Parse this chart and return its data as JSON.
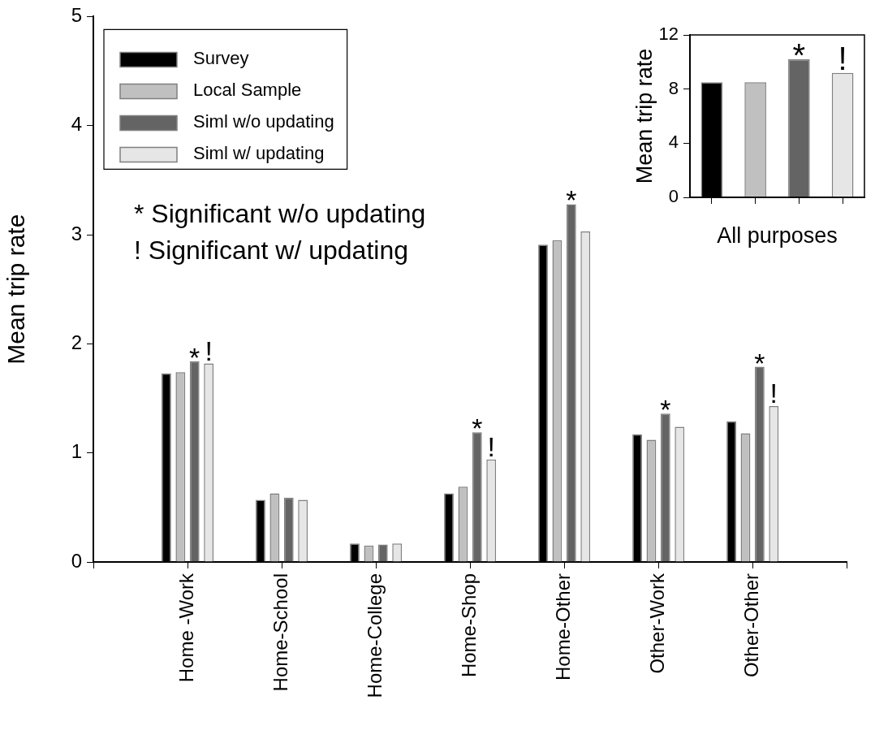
{
  "chart_data": [
    {
      "type": "bar",
      "ylabel": "Mean trip rate",
      "categories": [
        "Home -Work",
        "Home-School",
        "Home-College",
        "Home-Shop",
        "Home-Other",
        "Other-Work",
        "Other-Other"
      ],
      "series": [
        {
          "name": "Survey",
          "color": "#000000",
          "values": [
            1.73,
            0.57,
            0.17,
            0.63,
            2.91,
            1.17,
            1.29
          ]
        },
        {
          "name": "Local Sample",
          "color": "#c0c0c0",
          "values": [
            1.74,
            0.63,
            0.15,
            0.69,
            2.95,
            1.12,
            1.18
          ]
        },
        {
          "name": "Siml w/o updating",
          "color": "#646464",
          "values": [
            1.84,
            0.59,
            0.16,
            1.19,
            3.28,
            1.36,
            1.79
          ]
        },
        {
          "name": "Siml w/ updating",
          "color": "#e6e6e6",
          "values": [
            1.82,
            0.57,
            0.17,
            0.94,
            3.03,
            1.24,
            1.43
          ]
        }
      ],
      "ylim": [
        0,
        5
      ],
      "yticks": [
        0,
        1,
        2,
        3,
        4,
        5
      ],
      "grid": false,
      "legend": "top left",
      "annotations": [
        {
          "text": "*",
          "x": "Home -Work",
          "y": 1.84
        },
        {
          "text": "!",
          "x": "Home -Work",
          "y": 1.82
        },
        {
          "text": "*",
          "x": "Home-Shop",
          "y": 1.19
        },
        {
          "text": "!",
          "x": "Home-Shop",
          "y": 0.94
        },
        {
          "text": "*",
          "x": "Home-Other",
          "y": 3.28
        },
        {
          "text": "*",
          "x": "Other-Work",
          "y": 1.36
        },
        {
          "text": "*",
          "x": "Other-Other",
          "y": 1.79
        },
        {
          "text": "!",
          "x": "Other-Other",
          "y": 1.43
        },
        "* Significant w/o updating",
        "! Significant w/ updating"
      ]
    },
    {
      "type": "bar",
      "xlabel": "All purposes",
      "ylabel": "Mean trip rate",
      "categories": [
        null,
        null,
        null,
        null
      ],
      "values": [
        8.5,
        8.5,
        10.2,
        9.2
      ],
      "colors": [
        "#000000",
        "#c0c0c0",
        "#646464",
        "#e6e6e6"
      ],
      "ylim": [
        0,
        12
      ],
      "yticks": [
        0,
        4,
        8,
        12
      ],
      "grid": false,
      "legend": false,
      "annotations": [
        {
          "text": "*",
          "y": 10.2
        },
        {
          "text": "!",
          "y": 9.2
        }
      ]
    }
  ]
}
